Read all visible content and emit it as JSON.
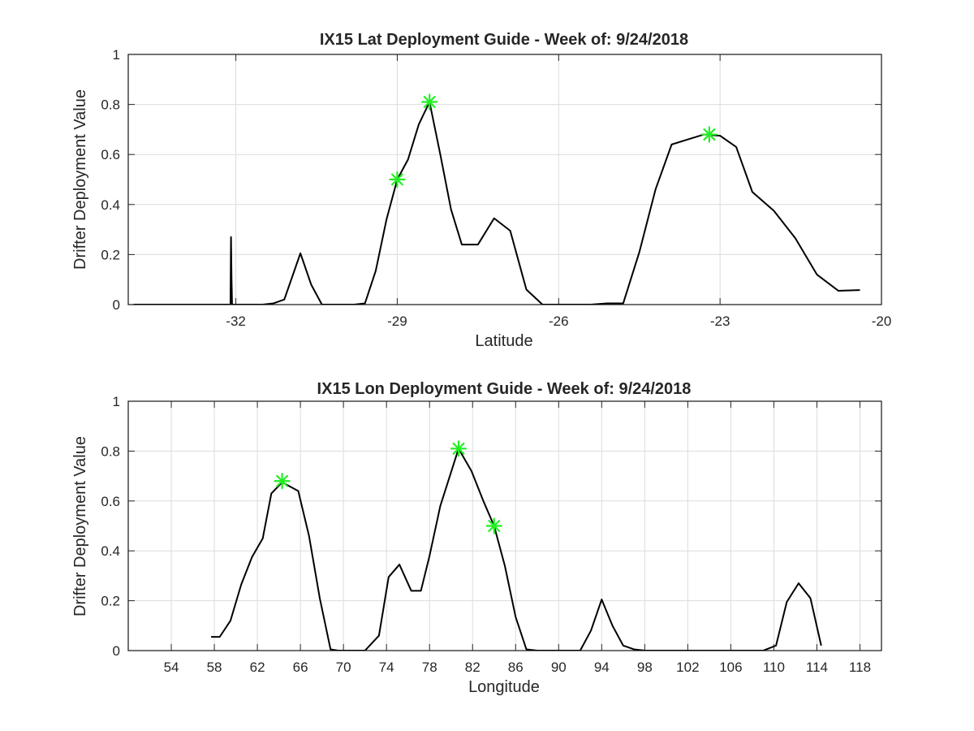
{
  "chart_data": [
    {
      "type": "line",
      "title": "IX15 Lat Deployment Guide - Week of: 9/24/2018",
      "xlabel": "Latitude",
      "ylabel": "Drifter Deployment Value",
      "xlim": [
        -34,
        -20
      ],
      "ylim": [
        0,
        1
      ],
      "xticks": [
        -32,
        -29,
        -26,
        -23,
        -20
      ],
      "xtick_labels": [
        "-32",
        "-29",
        "-26",
        "-23",
        "-20"
      ],
      "yticks": [
        0,
        0.2,
        0.4,
        0.6,
        0.8,
        1
      ],
      "ytick_labels": [
        "0",
        "0.2",
        "0.4",
        "0.6",
        "0.8",
        "1"
      ],
      "grid": true,
      "series": [
        {
          "color": "#000000",
          "x": [
            -33.9,
            -32.1,
            -32.09,
            -32.08,
            -32.07,
            -32.06,
            -32.05,
            -31.5,
            -31.3,
            -31.1,
            -30.8,
            -30.6,
            -30.4,
            -30.0,
            -29.8,
            -29.6,
            -29.4,
            -29.2,
            -29.0,
            -28.8,
            -28.6,
            -28.4,
            -28.2,
            -28.0,
            -27.8,
            -27.5,
            -27.2,
            -26.9,
            -26.6,
            -26.3,
            -26.0,
            -25.7,
            -25.4,
            -25.1,
            -24.8,
            -24.5,
            -24.2,
            -23.9,
            -23.6,
            -23.3,
            -23.0,
            -22.7,
            -22.4,
            -22.0,
            -21.6,
            -21.2,
            -20.8,
            -20.4
          ],
          "y": [
            0,
            0,
            0.27,
            0.1,
            0,
            0,
            0,
            0,
            0.005,
            0.02,
            0.205,
            0.08,
            0,
            0,
            0,
            0.005,
            0.135,
            0.34,
            0.5,
            0.58,
            0.72,
            0.81,
            0.6,
            0.38,
            0.24,
            0.24,
            0.345,
            0.295,
            0.06,
            0,
            0,
            0,
            0,
            0.005,
            0.005,
            0.21,
            0.46,
            0.64,
            0.66,
            0.68,
            0.675,
            0.63,
            0.45,
            0.375,
            0.265,
            0.12,
            0.055,
            0.058
          ]
        }
      ],
      "markers": {
        "color": "#22ee22",
        "symbol": "*",
        "x": [
          -29.0,
          -28.4,
          -23.2
        ],
        "y": [
          0.5,
          0.81,
          0.68
        ]
      }
    },
    {
      "type": "line",
      "title": "IX15 Lon Deployment Guide - Week of: 9/24/2018",
      "xlabel": "Longitude",
      "ylabel": "Drifter Deployment Value",
      "xlim": [
        50,
        120
      ],
      "ylim": [
        0,
        1
      ],
      "xticks": [
        54,
        58,
        62,
        66,
        70,
        74,
        78,
        82,
        86,
        90,
        94,
        98,
        102,
        106,
        110,
        114,
        118
      ],
      "xtick_labels": [
        "54",
        "58",
        "62",
        "66",
        "70",
        "74",
        "78",
        "82",
        "86",
        "90",
        "94",
        "98",
        "102",
        "106",
        "110",
        "114",
        "118"
      ],
      "yticks": [
        0,
        0.2,
        0.4,
        0.6,
        0.8,
        1
      ],
      "ytick_labels": [
        "0",
        "0.2",
        "0.4",
        "0.6",
        "0.8",
        "1"
      ],
      "grid": true,
      "series": [
        {
          "color": "#000000",
          "x": [
            57.7,
            58.5,
            59.5,
            60.5,
            61.5,
            62.5,
            63.3,
            64.3,
            65.8,
            66.8,
            67.8,
            68.8,
            69.5,
            71.0,
            72.0,
            73.3,
            74.2,
            75.2,
            76.3,
            77.2,
            78.0,
            79.0,
            80.7,
            81.9,
            83.0,
            84.0,
            85.0,
            86.0,
            87.0,
            88.0,
            90.0,
            92.0,
            93.0,
            94.0,
            95.0,
            96.0,
            97.0,
            98.0,
            100.0,
            103.0,
            106.0,
            109.0,
            110.2,
            111.2,
            112.3,
            113.4,
            114.4
          ],
          "y": [
            0.055,
            0.055,
            0.12,
            0.265,
            0.375,
            0.45,
            0.63,
            0.675,
            0.64,
            0.46,
            0.21,
            0.005,
            0,
            0,
            0,
            0.06,
            0.295,
            0.345,
            0.24,
            0.24,
            0.38,
            0.58,
            0.81,
            0.72,
            0.6,
            0.5,
            0.34,
            0.135,
            0.005,
            0,
            0,
            0,
            0.08,
            0.205,
            0.1,
            0.02,
            0.005,
            0,
            0,
            0,
            0,
            0,
            0.02,
            0.195,
            0.27,
            0.21,
            0.02
          ]
        }
      ],
      "markers": {
        "color": "#22ee22",
        "symbol": "*",
        "x": [
          64.3,
          80.7,
          84.0
        ],
        "y": [
          0.68,
          0.81,
          0.5
        ]
      }
    }
  ]
}
